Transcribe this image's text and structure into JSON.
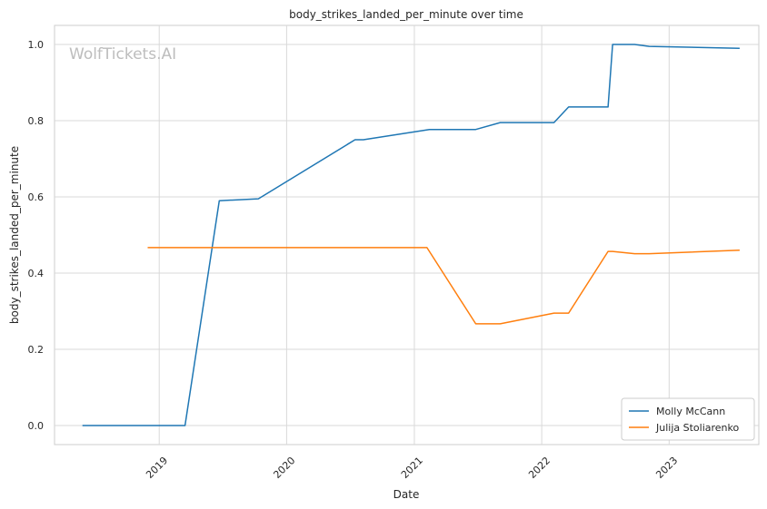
{
  "chart_data": {
    "type": "line",
    "title": "body_strikes_landed_per_minute over time",
    "xlabel": "Date",
    "ylabel": "body_strikes_landed_per_minute",
    "watermark": "WolfTickets.AI",
    "xlim": [
      "2018-03-07",
      "2023-09-15"
    ],
    "ylim": [
      -0.05,
      1.05
    ],
    "x_ticks": [
      "2019",
      "2020",
      "2021",
      "2022",
      "2023"
    ],
    "y_ticks": [
      "0.0",
      "0.2",
      "0.4",
      "0.6",
      "0.8",
      "1.0"
    ],
    "grid": true,
    "legend_position": "bottom-right",
    "series": [
      {
        "name": "Molly McCann",
        "color": "#1f77b4",
        "points": [
          [
            "2018-05-26",
            0.0
          ],
          [
            "2019-03-16",
            0.0
          ],
          [
            "2019-06-22",
            0.59
          ],
          [
            "2019-10-12",
            0.595
          ],
          [
            "2020-07-15",
            0.75
          ],
          [
            "2020-08-08",
            0.75
          ],
          [
            "2021-02-13",
            0.777
          ],
          [
            "2021-06-26",
            0.777
          ],
          [
            "2021-09-04",
            0.795
          ],
          [
            "2022-02-05",
            0.795
          ],
          [
            "2022-03-19",
            0.836
          ],
          [
            "2022-07-10",
            0.836
          ],
          [
            "2022-07-23",
            1.0
          ],
          [
            "2022-09-24",
            1.0
          ],
          [
            "2022-11-05",
            0.995
          ],
          [
            "2023-07-22",
            0.99
          ]
        ]
      },
      {
        "name": "Julija Stoliarenko",
        "color": "#ff7f0e",
        "points": [
          [
            "2018-11-29",
            0.467
          ],
          [
            "2021-02-06",
            0.467
          ],
          [
            "2021-06-26",
            0.267
          ],
          [
            "2021-09-04",
            0.267
          ],
          [
            "2022-02-05",
            0.295
          ],
          [
            "2022-03-19",
            0.295
          ],
          [
            "2022-07-10",
            0.457
          ],
          [
            "2022-07-23",
            0.457
          ],
          [
            "2022-09-24",
            0.451
          ],
          [
            "2022-11-05",
            0.451
          ],
          [
            "2023-07-22",
            0.46
          ]
        ]
      }
    ]
  }
}
